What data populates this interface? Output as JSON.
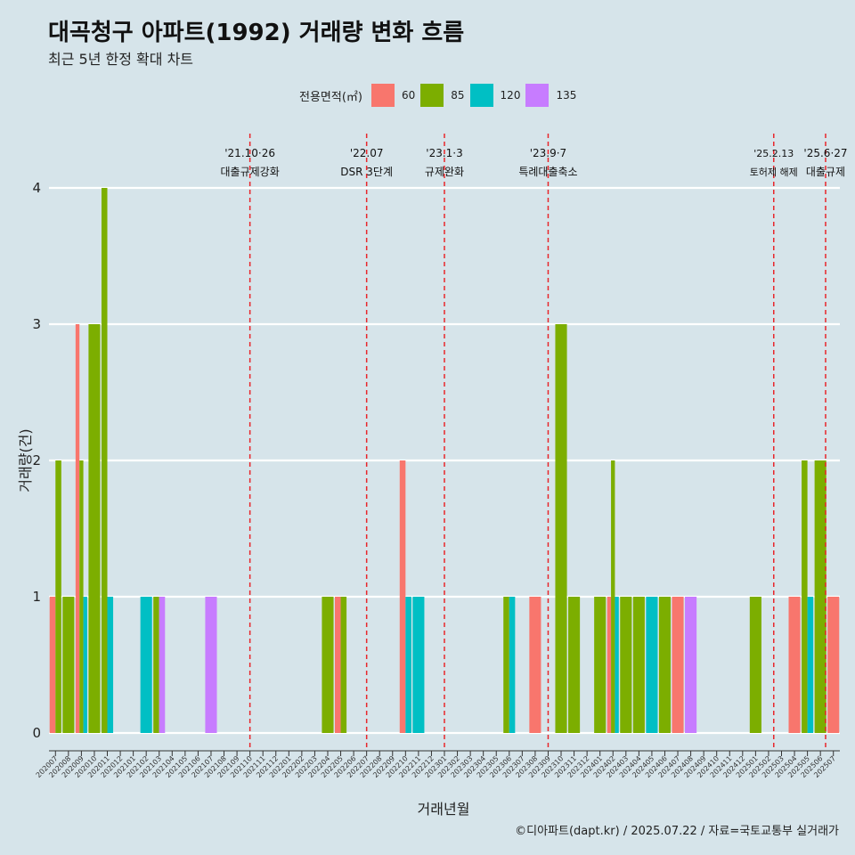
{
  "header": {
    "title": "대곡청구 아파트(1992) 거래량 변화 흐름",
    "subtitle": "최근 5년 한정 확대 차트"
  },
  "footer": {
    "caption": "©디아파트(dapt.kr) / 2025.07.22 / 자료=국토교통부 실거래가"
  },
  "legend": {
    "title": "전용면적(㎡)",
    "items": [
      {
        "label": "60",
        "color": "#F8766D"
      },
      {
        "label": "85",
        "color": "#7CAE00"
      },
      {
        "label": "120",
        "color": "#00BFC4"
      },
      {
        "label": "135",
        "color": "#C77CFF"
      }
    ]
  },
  "chart_data": {
    "type": "bar",
    "xlabel": "거래년월",
    "ylabel": "거래량(건)",
    "ylim": [
      0,
      4
    ],
    "yticks": [
      0,
      1,
      2,
      3,
      4
    ],
    "grid": true,
    "legend_position": "top",
    "categories": [
      "202007",
      "202008",
      "202009",
      "202010",
      "202011",
      "202012",
      "202101",
      "202102",
      "202103",
      "202104",
      "202105",
      "202106",
      "202107",
      "202108",
      "202109",
      "202110",
      "202111",
      "202112",
      "202201",
      "202202",
      "202203",
      "202204",
      "202205",
      "202206",
      "202207",
      "202208",
      "202209",
      "202210",
      "202211",
      "202212",
      "202301",
      "202302",
      "202303",
      "202304",
      "202305",
      "202306",
      "202307",
      "202308",
      "202309",
      "202310",
      "202311",
      "202312",
      "202401",
      "202402",
      "202403",
      "202404",
      "202405",
      "202406",
      "202407",
      "202408",
      "202409",
      "202410",
      "202411",
      "202412",
      "202501",
      "202502",
      "202503",
      "202504",
      "202505",
      "202506",
      "202507"
    ],
    "bars": [
      {
        "month": "202007",
        "area": "60",
        "count": 1
      },
      {
        "month": "202007",
        "area": "85",
        "count": 2
      },
      {
        "month": "202008",
        "area": "85",
        "count": 1
      },
      {
        "month": "202009",
        "area": "60",
        "count": 3
      },
      {
        "month": "202009",
        "area": "85",
        "count": 2
      },
      {
        "month": "202009",
        "area": "120",
        "count": 1
      },
      {
        "month": "202010",
        "area": "85",
        "count": 3
      },
      {
        "month": "202011",
        "area": "85",
        "count": 4
      },
      {
        "month": "202011",
        "area": "120",
        "count": 1
      },
      {
        "month": "202102",
        "area": "120",
        "count": 1
      },
      {
        "month": "202103",
        "area": "85",
        "count": 1
      },
      {
        "month": "202103",
        "area": "135",
        "count": 1
      },
      {
        "month": "202107",
        "area": "135",
        "count": 1
      },
      {
        "month": "202204",
        "area": "85",
        "count": 1
      },
      {
        "month": "202205",
        "area": "60",
        "count": 1
      },
      {
        "month": "202205",
        "area": "85",
        "count": 1
      },
      {
        "month": "202210",
        "area": "60",
        "count": 2
      },
      {
        "month": "202210",
        "area": "120",
        "count": 1
      },
      {
        "month": "202211",
        "area": "120",
        "count": 1
      },
      {
        "month": "202306",
        "area": "85",
        "count": 1
      },
      {
        "month": "202306",
        "area": "120",
        "count": 1
      },
      {
        "month": "202308",
        "area": "60",
        "count": 1
      },
      {
        "month": "202310",
        "area": "85",
        "count": 3
      },
      {
        "month": "202311",
        "area": "85",
        "count": 1
      },
      {
        "month": "202401",
        "area": "85",
        "count": 1
      },
      {
        "month": "202402",
        "area": "60",
        "count": 1
      },
      {
        "month": "202402",
        "area": "85",
        "count": 2
      },
      {
        "month": "202402",
        "area": "120",
        "count": 1
      },
      {
        "month": "202403",
        "area": "85",
        "count": 1
      },
      {
        "month": "202404",
        "area": "85",
        "count": 1
      },
      {
        "month": "202405",
        "area": "120",
        "count": 1
      },
      {
        "month": "202406",
        "area": "85",
        "count": 1
      },
      {
        "month": "202407",
        "area": "60",
        "count": 1
      },
      {
        "month": "202408",
        "area": "135",
        "count": 1
      },
      {
        "month": "202501",
        "area": "85",
        "count": 1
      },
      {
        "month": "202504",
        "area": "60",
        "count": 1
      },
      {
        "month": "202505",
        "area": "85",
        "count": 2
      },
      {
        "month": "202505",
        "area": "120",
        "count": 1
      },
      {
        "month": "202506",
        "area": "85",
        "count": 2
      },
      {
        "month": "202507",
        "area": "60",
        "count": 1
      }
    ],
    "annotations": [
      {
        "month": "202110",
        "offset": 0,
        "date": "'21.10·26",
        "text": "대출규제강화"
      },
      {
        "month": "202207",
        "offset": 0,
        "date": "'22.07",
        "text": "DSR 3단계"
      },
      {
        "month": "202301",
        "offset": 0,
        "date": "'23.1·3",
        "text": "규제완화"
      },
      {
        "month": "202309",
        "offset": 0,
        "date": "'23.9·7",
        "text": "특례대출축소"
      },
      {
        "month": "202502",
        "offset": 0.4,
        "date": "'25.2.13",
        "text": "토허제 해제"
      },
      {
        "month": "202506",
        "offset": 0.4,
        "date": "'25.6·27",
        "text": "대출규제"
      }
    ]
  }
}
